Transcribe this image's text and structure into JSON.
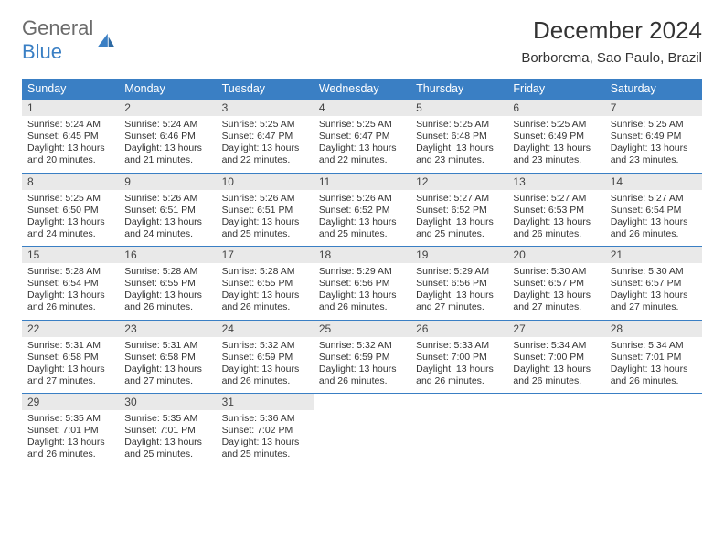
{
  "logo": {
    "a": "General",
    "b": "Blue"
  },
  "header": {
    "title": "December 2024",
    "location": "Borborema, Sao Paulo, Brazil"
  },
  "colors": {
    "accent": "#3a7fc4",
    "header_stripe": "#e9e9e9",
    "bg": "#ffffff",
    "text": "#333333"
  },
  "calendar": {
    "type": "table",
    "columns": [
      "Sunday",
      "Monday",
      "Tuesday",
      "Wednesday",
      "Thursday",
      "Friday",
      "Saturday"
    ],
    "header_fontsize": 12.5,
    "body_fontsize": 10.5,
    "days": [
      {
        "n": 1,
        "sunrise": "5:24 AM",
        "sunset": "6:45 PM",
        "daylight": "13 hours and 20 minutes."
      },
      {
        "n": 2,
        "sunrise": "5:24 AM",
        "sunset": "6:46 PM",
        "daylight": "13 hours and 21 minutes."
      },
      {
        "n": 3,
        "sunrise": "5:25 AM",
        "sunset": "6:47 PM",
        "daylight": "13 hours and 22 minutes."
      },
      {
        "n": 4,
        "sunrise": "5:25 AM",
        "sunset": "6:47 PM",
        "daylight": "13 hours and 22 minutes."
      },
      {
        "n": 5,
        "sunrise": "5:25 AM",
        "sunset": "6:48 PM",
        "daylight": "13 hours and 23 minutes."
      },
      {
        "n": 6,
        "sunrise": "5:25 AM",
        "sunset": "6:49 PM",
        "daylight": "13 hours and 23 minutes."
      },
      {
        "n": 7,
        "sunrise": "5:25 AM",
        "sunset": "6:49 PM",
        "daylight": "13 hours and 23 minutes."
      },
      {
        "n": 8,
        "sunrise": "5:25 AM",
        "sunset": "6:50 PM",
        "daylight": "13 hours and 24 minutes."
      },
      {
        "n": 9,
        "sunrise": "5:26 AM",
        "sunset": "6:51 PM",
        "daylight": "13 hours and 24 minutes."
      },
      {
        "n": 10,
        "sunrise": "5:26 AM",
        "sunset": "6:51 PM",
        "daylight": "13 hours and 25 minutes."
      },
      {
        "n": 11,
        "sunrise": "5:26 AM",
        "sunset": "6:52 PM",
        "daylight": "13 hours and 25 minutes."
      },
      {
        "n": 12,
        "sunrise": "5:27 AM",
        "sunset": "6:52 PM",
        "daylight": "13 hours and 25 minutes."
      },
      {
        "n": 13,
        "sunrise": "5:27 AM",
        "sunset": "6:53 PM",
        "daylight": "13 hours and 26 minutes."
      },
      {
        "n": 14,
        "sunrise": "5:27 AM",
        "sunset": "6:54 PM",
        "daylight": "13 hours and 26 minutes."
      },
      {
        "n": 15,
        "sunrise": "5:28 AM",
        "sunset": "6:54 PM",
        "daylight": "13 hours and 26 minutes."
      },
      {
        "n": 16,
        "sunrise": "5:28 AM",
        "sunset": "6:55 PM",
        "daylight": "13 hours and 26 minutes."
      },
      {
        "n": 17,
        "sunrise": "5:28 AM",
        "sunset": "6:55 PM",
        "daylight": "13 hours and 26 minutes."
      },
      {
        "n": 18,
        "sunrise": "5:29 AM",
        "sunset": "6:56 PM",
        "daylight": "13 hours and 26 minutes."
      },
      {
        "n": 19,
        "sunrise": "5:29 AM",
        "sunset": "6:56 PM",
        "daylight": "13 hours and 27 minutes."
      },
      {
        "n": 20,
        "sunrise": "5:30 AM",
        "sunset": "6:57 PM",
        "daylight": "13 hours and 27 minutes."
      },
      {
        "n": 21,
        "sunrise": "5:30 AM",
        "sunset": "6:57 PM",
        "daylight": "13 hours and 27 minutes."
      },
      {
        "n": 22,
        "sunrise": "5:31 AM",
        "sunset": "6:58 PM",
        "daylight": "13 hours and 27 minutes."
      },
      {
        "n": 23,
        "sunrise": "5:31 AM",
        "sunset": "6:58 PM",
        "daylight": "13 hours and 27 minutes."
      },
      {
        "n": 24,
        "sunrise": "5:32 AM",
        "sunset": "6:59 PM",
        "daylight": "13 hours and 26 minutes."
      },
      {
        "n": 25,
        "sunrise": "5:32 AM",
        "sunset": "6:59 PM",
        "daylight": "13 hours and 26 minutes."
      },
      {
        "n": 26,
        "sunrise": "5:33 AM",
        "sunset": "7:00 PM",
        "daylight": "13 hours and 26 minutes."
      },
      {
        "n": 27,
        "sunrise": "5:34 AM",
        "sunset": "7:00 PM",
        "daylight": "13 hours and 26 minutes."
      },
      {
        "n": 28,
        "sunrise": "5:34 AM",
        "sunset": "7:01 PM",
        "daylight": "13 hours and 26 minutes."
      },
      {
        "n": 29,
        "sunrise": "5:35 AM",
        "sunset": "7:01 PM",
        "daylight": "13 hours and 26 minutes."
      },
      {
        "n": 30,
        "sunrise": "5:35 AM",
        "sunset": "7:01 PM",
        "daylight": "13 hours and 25 minutes."
      },
      {
        "n": 31,
        "sunrise": "5:36 AM",
        "sunset": "7:02 PM",
        "daylight": "13 hours and 25 minutes."
      }
    ],
    "labels": {
      "sunrise": "Sunrise: ",
      "sunset": "Sunset: ",
      "daylight": "Daylight: "
    }
  }
}
